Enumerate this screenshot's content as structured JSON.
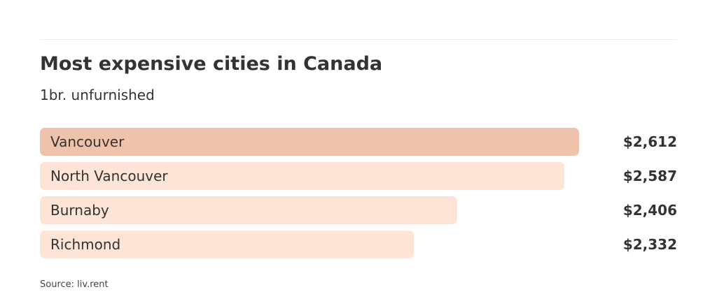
{
  "chart_data": {
    "type": "bar",
    "orientation": "horizontal",
    "title": "Most expensive cities in Canada",
    "subtitle": "1br. unfurnished",
    "categories": [
      "Vancouver",
      "North Vancouver",
      "Burnaby",
      "Richmond"
    ],
    "values": [
      2612,
      2587,
      2406,
      2332
    ],
    "value_labels": [
      "$2,612",
      "$2,587",
      "$2,406",
      "$2,332"
    ],
    "bar_colors": [
      "#efc2ab",
      "#fde4d6",
      "#fde4d6",
      "#fde4d6"
    ],
    "grid": false,
    "legend": "none",
    "source": "Source: liv.rent"
  }
}
